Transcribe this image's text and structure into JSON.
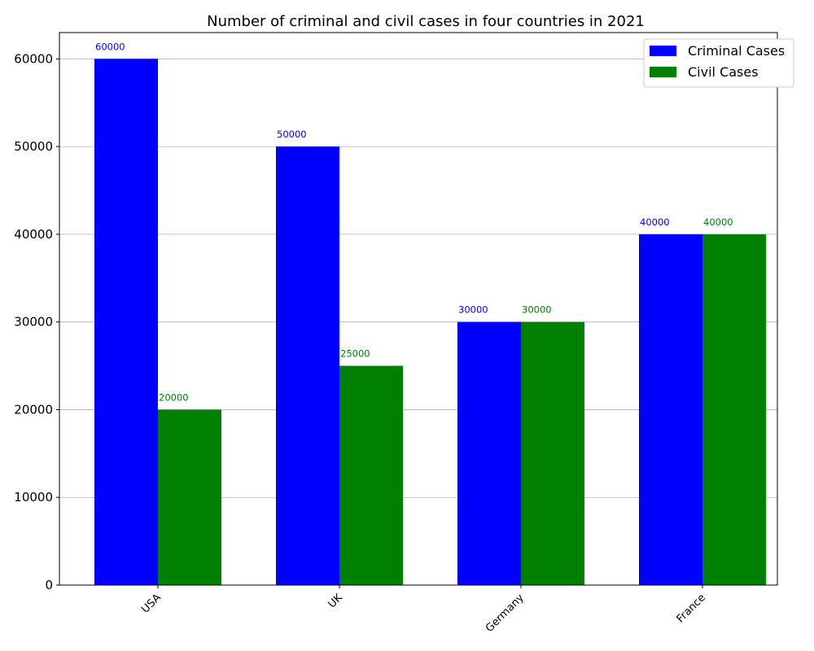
{
  "chart_data": {
    "type": "bar",
    "title": "Number of criminal and civil cases in four countries in 2021",
    "xlabel": "",
    "ylabel": "",
    "categories": [
      "USA",
      "UK",
      "Germany",
      "France"
    ],
    "series": [
      {
        "name": "Criminal Cases",
        "color": "#0000ff",
        "values": [
          60000,
          50000,
          30000,
          40000
        ]
      },
      {
        "name": "Civil Cases",
        "color": "#008000",
        "values": [
          20000,
          25000,
          30000,
          40000
        ]
      }
    ],
    "ylim": [
      0,
      63000
    ],
    "yticks": [
      0,
      10000,
      20000,
      30000,
      40000,
      50000,
      60000
    ],
    "grid": "y",
    "legend": "top-right",
    "xtick_rotation": 45
  }
}
